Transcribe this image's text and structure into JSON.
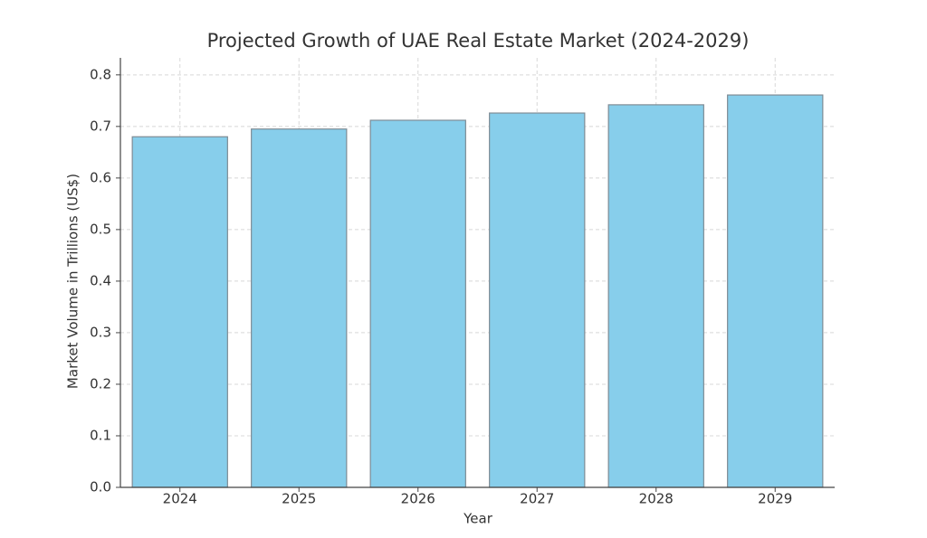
{
  "chart_data": {
    "type": "bar",
    "title": "Projected Growth of UAE Real Estate Market (2024-2029)",
    "x_label": "Year",
    "y_label": "Market Volume in Trillions (US$)",
    "categories": [
      "2024",
      "2025",
      "2026",
      "2027",
      "2028",
      "2029"
    ],
    "values": [
      0.68,
      0.695,
      0.712,
      0.726,
      0.742,
      0.761
    ],
    "color": "#87ceeb",
    "edge_color": "#7f8c95",
    "ylim": [
      0,
      0.833
    ],
    "yticks": [
      {
        "value": 0,
        "label": "0.0"
      },
      0.1,
      0.2,
      0.3,
      0.4,
      0.5,
      0.6,
      0.7,
      0.8
    ],
    "grid": true
  }
}
